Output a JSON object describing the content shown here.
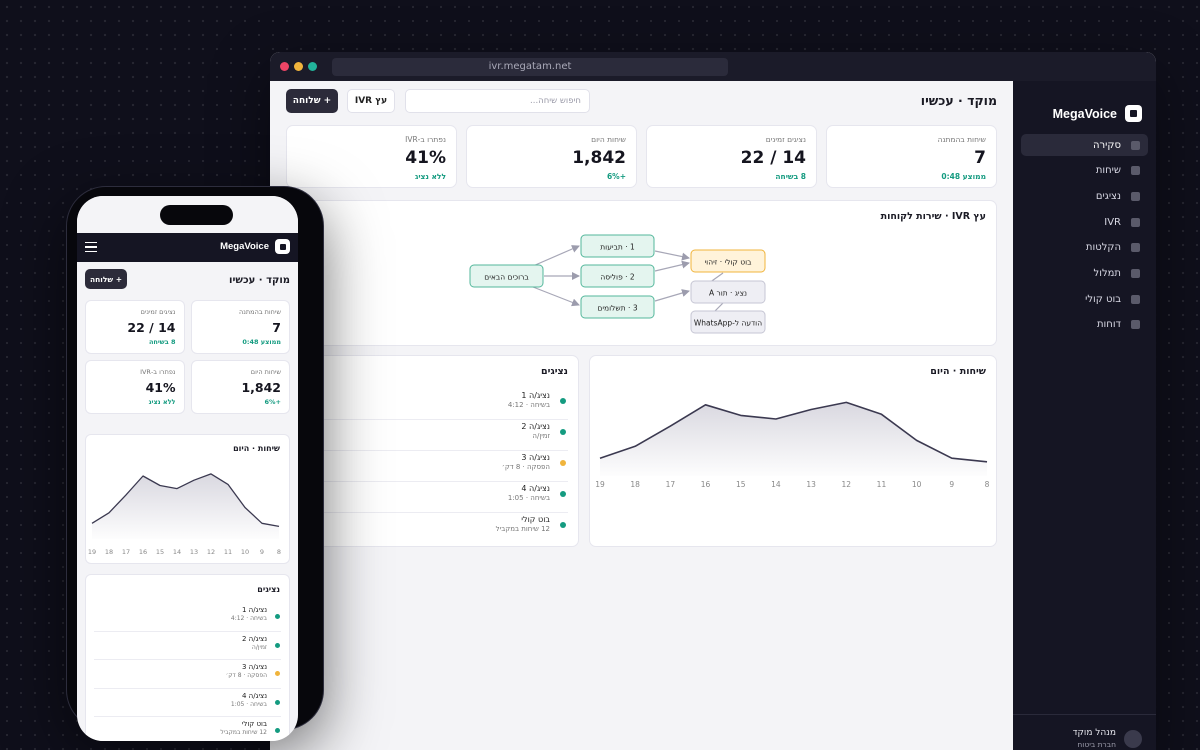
{
  "browser": {
    "url": "ivr.megatam.net"
  },
  "brand": {
    "name": "MegaVoice"
  },
  "sidebar": {
    "items": [
      {
        "label": "סקירה",
        "active": true
      },
      {
        "label": "שיחות",
        "active": false
      },
      {
        "label": "נציגים",
        "active": false
      },
      {
        "label": "IVR",
        "active": false
      },
      {
        "label": "הקלטות",
        "active": false
      },
      {
        "label": "תמלול",
        "active": false
      },
      {
        "label": "בוט קולי",
        "active": false
      },
      {
        "label": "דוחות",
        "active": false
      }
    ],
    "user": {
      "name": "מנהל מוקד",
      "org": "חברת ביטוח"
    }
  },
  "header": {
    "title": "מוקד · עכשיו",
    "search_placeholder": "חיפוש שיחה...",
    "ivr_tree_button": "עץ IVR",
    "dispatch_button": "+ שלוחה"
  },
  "kpis": [
    {
      "label": "שיחות בהמתנה",
      "value": "7",
      "sub": "ממוצע 0:48"
    },
    {
      "label": "נציגים זמינים",
      "value": "14 / 22",
      "sub": "8 בשיחה"
    },
    {
      "label": "שיחות היום",
      "value": "1,842",
      "sub": "+6%"
    },
    {
      "label": "נפתרו ב-IVR",
      "value": "41%",
      "sub": "ללא נציג"
    }
  ],
  "ivr_flow": {
    "title": "עץ IVR · שירות לקוחות",
    "nodes": {
      "welcome": "ברוכים הבאים",
      "claims": "1 · תביעות",
      "policy": "2 · פוליסה",
      "payments": "3 · תשלומים",
      "voicebot": "בוט קולי · זיהוי",
      "agent_queue": "נציג · תור A",
      "whatsapp": "הודעה ל-WhatsApp"
    }
  },
  "calls_chart": {
    "title": "שיחות · היום"
  },
  "chart_data": {
    "type": "area",
    "title": "שיחות · היום",
    "categories": [
      "8",
      "9",
      "10",
      "11",
      "12",
      "13",
      "14",
      "15",
      "16",
      "17",
      "18",
      "19"
    ],
    "series": [
      {
        "values": [
          12,
          15,
          30,
          52,
          62,
          56,
          48,
          51,
          60,
          42,
          25,
          15
        ]
      }
    ],
    "ylim": [
      0,
      80
    ],
    "grid": false,
    "legend": "none",
    "fill_color": "#d9d8e0",
    "line_color": "#3b3950"
  },
  "agents": {
    "title": "נציגים",
    "items": [
      {
        "name": "נציג/ה 1",
        "status": "בשיחה · 4:12",
        "color": "#149b80"
      },
      {
        "name": "נציג/ה 2",
        "status": "זמין/ה",
        "color": "#149b80"
      },
      {
        "name": "נציג/ה 3",
        "status": "הפסקה · 8 דק׳",
        "color": "#f0b43c"
      },
      {
        "name": "נציג/ה 4",
        "status": "בשיחה · 1:05",
        "color": "#149b80"
      },
      {
        "name": "בוט קולי",
        "status": "12 שיחות במקביל",
        "color": "#149b80"
      }
    ]
  }
}
